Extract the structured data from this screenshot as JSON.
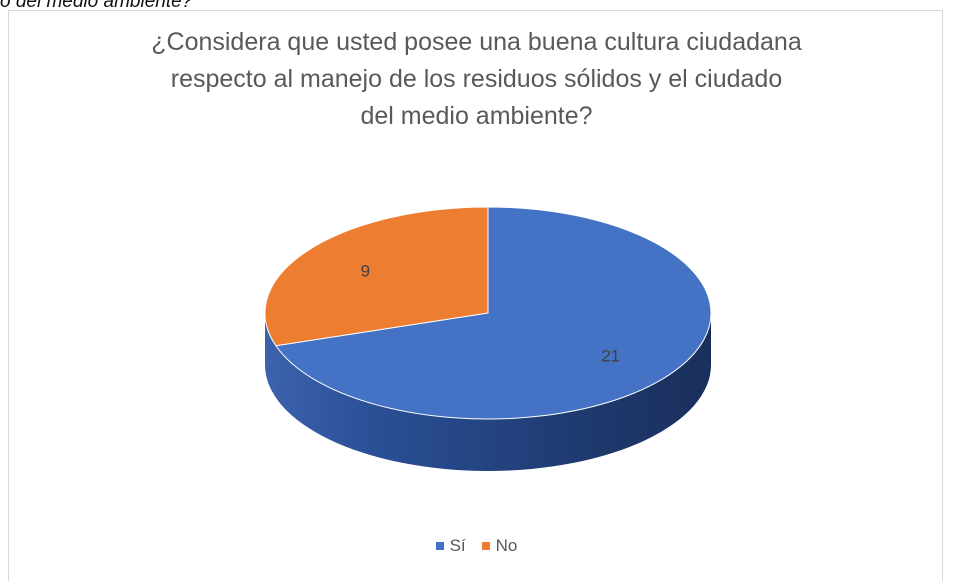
{
  "caption_fragment": "o del medio ambiente?",
  "chart_data": {
    "type": "pie",
    "title": "¿Considera que usted posee una buena cultura ciudadana respecto al manejo de los residuos sólidos y el ciudado del medio ambiente?",
    "title_lines": [
      "¿Considera que usted posee una buena cultura ciudadana",
      "respecto al manejo de los residuos sólidos y el ciudado",
      "del medio ambiente?"
    ],
    "categories": [
      "Sí",
      "No"
    ],
    "values": [
      21,
      9
    ],
    "colors": [
      "#4472C4",
      "#ED7D31"
    ],
    "data_labels": [
      "21",
      "9"
    ],
    "legend_position": "bottom",
    "style": "3d"
  }
}
